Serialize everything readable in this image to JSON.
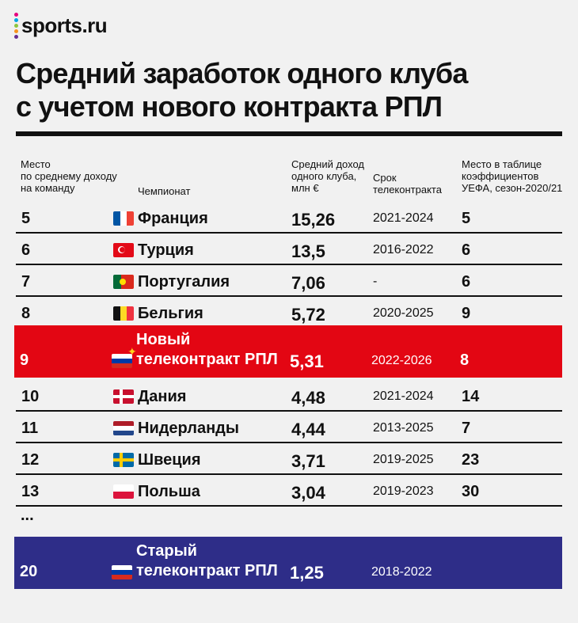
{
  "brand": {
    "logo_text": "sports.ru",
    "dot_colors": [
      "#e6007e",
      "#00a6e4",
      "#8dc63f",
      "#f7941d",
      "#662d91"
    ]
  },
  "title_lines": [
    "Средний заработок одного клуба",
    "с учетом нового контракта РПЛ"
  ],
  "headers": {
    "place": "Место\nпо среднему доходу\nна команду",
    "league": "Чемпионат",
    "income": "Средний доход\nодного клуба,\nмлн €",
    "term": "Срок\nтелеконтракта",
    "uefa": "Место в таблице\nкоэффициентов\nУЕФА, сезон-2020/21"
  },
  "colors": {
    "highlight_new": "#e30613",
    "highlight_old": "#2e2d88",
    "text": "#111111",
    "background": "#f1f1f1"
  },
  "chart_data": {
    "type": "table",
    "title": "Средний заработок одного клуба с учетом нового контракта РПЛ",
    "columns": [
      "Место по среднему доходу на команду",
      "Чемпионат",
      "Средний доход одного клуба, млн €",
      "Срок телеконтракта",
      "Место в таблице коэффициентов УЕФА, сезон-2020/21"
    ],
    "rows": [
      {
        "place": "5",
        "flag": "france-flag",
        "league": "Франция",
        "income": "15,26",
        "term": "2021-2024",
        "uefa": "5"
      },
      {
        "place": "6",
        "flag": "turkey-flag",
        "league": "Турция",
        "income": "13,5",
        "term": "2016-2022",
        "uefa": "6"
      },
      {
        "place": "7",
        "flag": "portugal-flag",
        "league": "Португалия",
        "income": "7,06",
        "term": "-",
        "uefa": "6"
      },
      {
        "place": "8",
        "flag": "belgium-flag",
        "league": "Бельгия",
        "income": "5,72",
        "term": "2020-2025",
        "uefa": "9"
      },
      {
        "place": "9",
        "flag": "russia-flag",
        "league": "Новый\nтелеконтракт РПЛ",
        "income": "5,31",
        "term": "2022-2026",
        "uefa": "8",
        "highlight": "new"
      },
      {
        "place": "10",
        "flag": "denmark-flag",
        "league": "Дания",
        "income": "4,48",
        "term": "2021-2024",
        "uefa": "14"
      },
      {
        "place": "11",
        "flag": "netherlands-flag",
        "league": "Нидерланды",
        "income": "4,44",
        "term": "2013-2025",
        "uefa": "7"
      },
      {
        "place": "12",
        "flag": "sweden-flag",
        "league": "Швеция",
        "income": "3,71",
        "term": "2019-2025",
        "uefa": "23"
      },
      {
        "place": "13",
        "flag": "poland-flag",
        "league": "Польша",
        "income": "3,04",
        "term": "2019-2023",
        "uefa": "30"
      },
      {
        "place": "20",
        "flag": "russia-flag",
        "league": "Старый\nтелеконтракт РПЛ",
        "income": "1,25",
        "term": "2018-2022",
        "uefa": "",
        "highlight": "old"
      }
    ],
    "ellipsis": "..."
  }
}
